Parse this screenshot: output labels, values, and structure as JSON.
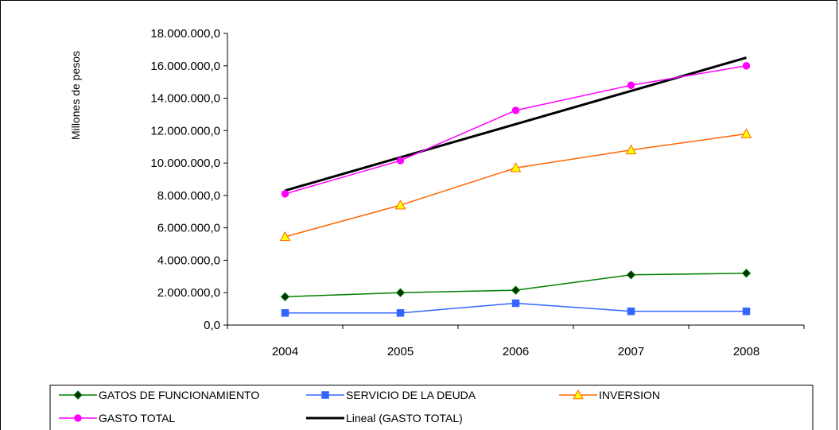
{
  "chart_data": {
    "type": "line",
    "title": "",
    "xlabel": "",
    "ylabel": "Millones de pesos",
    "categories": [
      "2004",
      "2005",
      "2006",
      "2007",
      "2008"
    ],
    "ylim": [
      0,
      18000000
    ],
    "yticks": [
      0,
      2000000,
      4000000,
      6000000,
      8000000,
      10000000,
      12000000,
      14000000,
      16000000,
      18000000
    ],
    "ytick_labels": [
      "0,0",
      "2.000.000,0",
      "4.000.000,0",
      "6.000.000,0",
      "8.000.000,0",
      "10.000.000,0",
      "12.000.000,0",
      "14.000.000,0",
      "16.000.000,0",
      "18.000.000,0"
    ],
    "grid": false,
    "legend_position": "bottom",
    "series": [
      {
        "name": "GATOS DE FUNCIONAMIENTO",
        "color": "#008000",
        "marker": "diamond",
        "marker_fill": "#003300",
        "values": [
          1750000,
          2000000,
          2150000,
          3100000,
          3200000
        ]
      },
      {
        "name": "SERVICIO DE LA DEUDA",
        "color": "#3366FF",
        "marker": "square",
        "marker_fill": "#3366FF",
        "values": [
          750000,
          750000,
          1350000,
          850000,
          850000
        ]
      },
      {
        "name": "INVERSION",
        "color": "#FF6600",
        "marker": "triangle",
        "marker_fill": "#FFFF00",
        "values": [
          5450000,
          7400000,
          9700000,
          10800000,
          11800000
        ]
      },
      {
        "name": "GASTO TOTAL",
        "color": "#FF00FF",
        "marker": "circle",
        "marker_fill": "#FF00FF",
        "values": [
          8100000,
          10150000,
          13250000,
          14800000,
          16000000
        ]
      },
      {
        "name": "Lineal (GASTO TOTAL)",
        "color": "#000000",
        "marker": "none",
        "marker_fill": "",
        "values": [
          8300000,
          10350000,
          12400000,
          14450000,
          16500000
        ]
      }
    ]
  }
}
